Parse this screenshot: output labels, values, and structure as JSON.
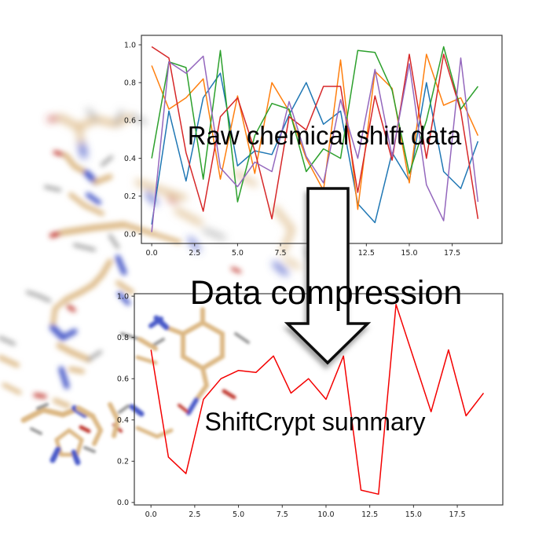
{
  "figure": {
    "labels": {
      "raw": "Raw chemical shift data",
      "compression": "Data compression",
      "summary": "ShiftCrypt summary"
    },
    "arrow": {
      "direction": "down",
      "fill": "#ffffff",
      "outline": "#111111"
    },
    "background": {
      "description": "blurred protein stick-model structure",
      "carbon_color": "#dcb884",
      "nitrogen_color": "#4a5ac8",
      "oxygen_color": "#c0392f",
      "hydrogen_color": "#949494"
    }
  },
  "chart_data": [
    {
      "type": "line",
      "title": "Raw chemical shift data",
      "xlabel": "",
      "ylabel": "",
      "grid": false,
      "legend": "none",
      "x": [
        0,
        1,
        2,
        3,
        4,
        5,
        6,
        7,
        8,
        9,
        10,
        11,
        12,
        13,
        14,
        15,
        16,
        17,
        18,
        19
      ],
      "xlim": [
        -0.6,
        20.4
      ],
      "ylim": [
        -0.05,
        1.05
      ],
      "xticks": [
        0,
        2.5,
        5,
        7.5,
        10,
        12.5,
        15,
        17.5
      ],
      "xtick_labels": [
        "0.0",
        "2.5",
        "5.0",
        "7.5",
        "10.0",
        "12.5",
        "15.0",
        "17.5"
      ],
      "yticks": [
        0,
        0.2,
        0.4,
        0.6,
        0.8,
        1.0
      ],
      "ytick_labels": [
        "0.0",
        "0.2",
        "0.4",
        "0.6",
        "0.8",
        "1.0"
      ],
      "series": [
        {
          "name": "series-1",
          "color": "#1f77b4",
          "values": [
            0.05,
            0.65,
            0.28,
            0.72,
            0.85,
            0.36,
            0.44,
            0.42,
            0.63,
            0.8,
            0.58,
            0.65,
            0.16,
            0.06,
            0.43,
            0.28,
            0.8,
            0.33,
            0.24,
            0.49
          ]
        },
        {
          "name": "series-2",
          "color": "#ff7f0e",
          "values": [
            0.89,
            0.66,
            0.72,
            0.82,
            0.29,
            0.73,
            0.32,
            0.8,
            0.65,
            0.4,
            0.23,
            0.92,
            0.13,
            0.86,
            0.77,
            0.27,
            0.95,
            0.68,
            0.72,
            0.52
          ]
        },
        {
          "name": "series-3",
          "color": "#2ca02c",
          "values": [
            0.4,
            0.91,
            0.88,
            0.29,
            0.97,
            0.17,
            0.52,
            0.69,
            0.66,
            0.33,
            0.45,
            0.4,
            0.97,
            0.96,
            0.76,
            0.32,
            0.6,
            0.99,
            0.66,
            0.78
          ]
        },
        {
          "name": "series-4",
          "color": "#d62728",
          "values": [
            0.99,
            0.93,
            0.43,
            0.12,
            0.62,
            0.72,
            0.44,
            0.08,
            0.62,
            0.55,
            0.78,
            0.78,
            0.22,
            0.73,
            0.39,
            0.95,
            0.4,
            0.95,
            0.65,
            0.08
          ]
        },
        {
          "name": "series-5",
          "color": "#9467bd",
          "values": [
            0.01,
            0.91,
            0.85,
            0.94,
            0.35,
            0.25,
            0.38,
            0.33,
            0.7,
            0.41,
            0.27,
            0.71,
            0.4,
            0.87,
            0.41,
            0.9,
            0.26,
            0.07,
            0.93,
            0.17
          ]
        }
      ]
    },
    {
      "type": "line",
      "title": "ShiftCrypt summary",
      "xlabel": "",
      "ylabel": "",
      "grid": false,
      "legend": "none",
      "x": [
        0,
        1,
        2,
        3,
        4,
        5,
        6,
        7,
        8,
        9,
        10,
        11,
        12,
        13,
        14,
        15,
        16,
        17,
        18,
        19
      ],
      "xlim": [
        -0.95,
        20.1
      ],
      "ylim": [
        -0.012,
        1.012
      ],
      "xticks": [
        0,
        2.5,
        5,
        7.5,
        10,
        12.5,
        15,
        17.5
      ],
      "xtick_labels": [
        "0.0",
        "2.5",
        "5.0",
        "7.5",
        "10.0",
        "12.5",
        "15.0",
        "17.5"
      ],
      "yticks": [
        0,
        0.2,
        0.4,
        0.6,
        0.8,
        1.0
      ],
      "ytick_labels": [
        "0.0",
        "0.2",
        "0.4",
        "0.6",
        "0.8",
        "1.0"
      ],
      "series": [
        {
          "name": "shiftcrypt-summary",
          "color": "#f40000",
          "values": [
            0.74,
            0.22,
            0.14,
            0.5,
            0.6,
            0.64,
            0.63,
            0.71,
            0.53,
            0.6,
            0.5,
            0.71,
            0.06,
            0.04,
            0.96,
            0.7,
            0.44,
            0.74,
            0.42,
            0.53
          ]
        }
      ]
    }
  ]
}
